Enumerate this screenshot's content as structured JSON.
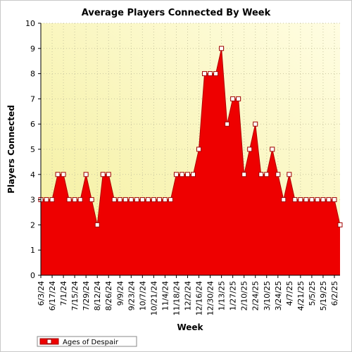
{
  "chart_data": {
    "type": "area",
    "title": "Average Players Connected By Week",
    "xlabel": "Week",
    "ylabel": "Players Connected",
    "ylim": [
      0,
      10
    ],
    "yticks": [
      0,
      1,
      2,
      3,
      4,
      5,
      6,
      7,
      8,
      9,
      10
    ],
    "grid": true,
    "legend_position": "bottom-left",
    "x_tick_labels": [
      "6/3/24",
      "6/17/24",
      "7/1/24",
      "7/15/24",
      "7/29/24",
      "8/12/24",
      "8/26/24",
      "9/9/24",
      "9/23/24",
      "10/7/24",
      "10/21/24",
      "11/4/24",
      "11/18/24",
      "12/2/24",
      "12/16/24",
      "12/30/24",
      "1/13/25",
      "1/27/25",
      "2/10/25",
      "2/24/25",
      "3/10/25",
      "3/24/25",
      "4/7/25",
      "4/21/25",
      "5/5/25",
      "5/19/25",
      "6/2/25"
    ],
    "series": [
      {
        "name": "Ages of Despair",
        "color": "#ee0000",
        "values": [
          3,
          3,
          3,
          4,
          4,
          3,
          3,
          3,
          4,
          3,
          2,
          4,
          4,
          3,
          3,
          3,
          3,
          3,
          3,
          3,
          3,
          3,
          3,
          3,
          4,
          4,
          4,
          4,
          5,
          8,
          8,
          8,
          9,
          6,
          7,
          7,
          4,
          5,
          6,
          4,
          4,
          5,
          4,
          3,
          4,
          3,
          3,
          3,
          3,
          3,
          3,
          3,
          3,
          2
        ]
      }
    ]
  }
}
